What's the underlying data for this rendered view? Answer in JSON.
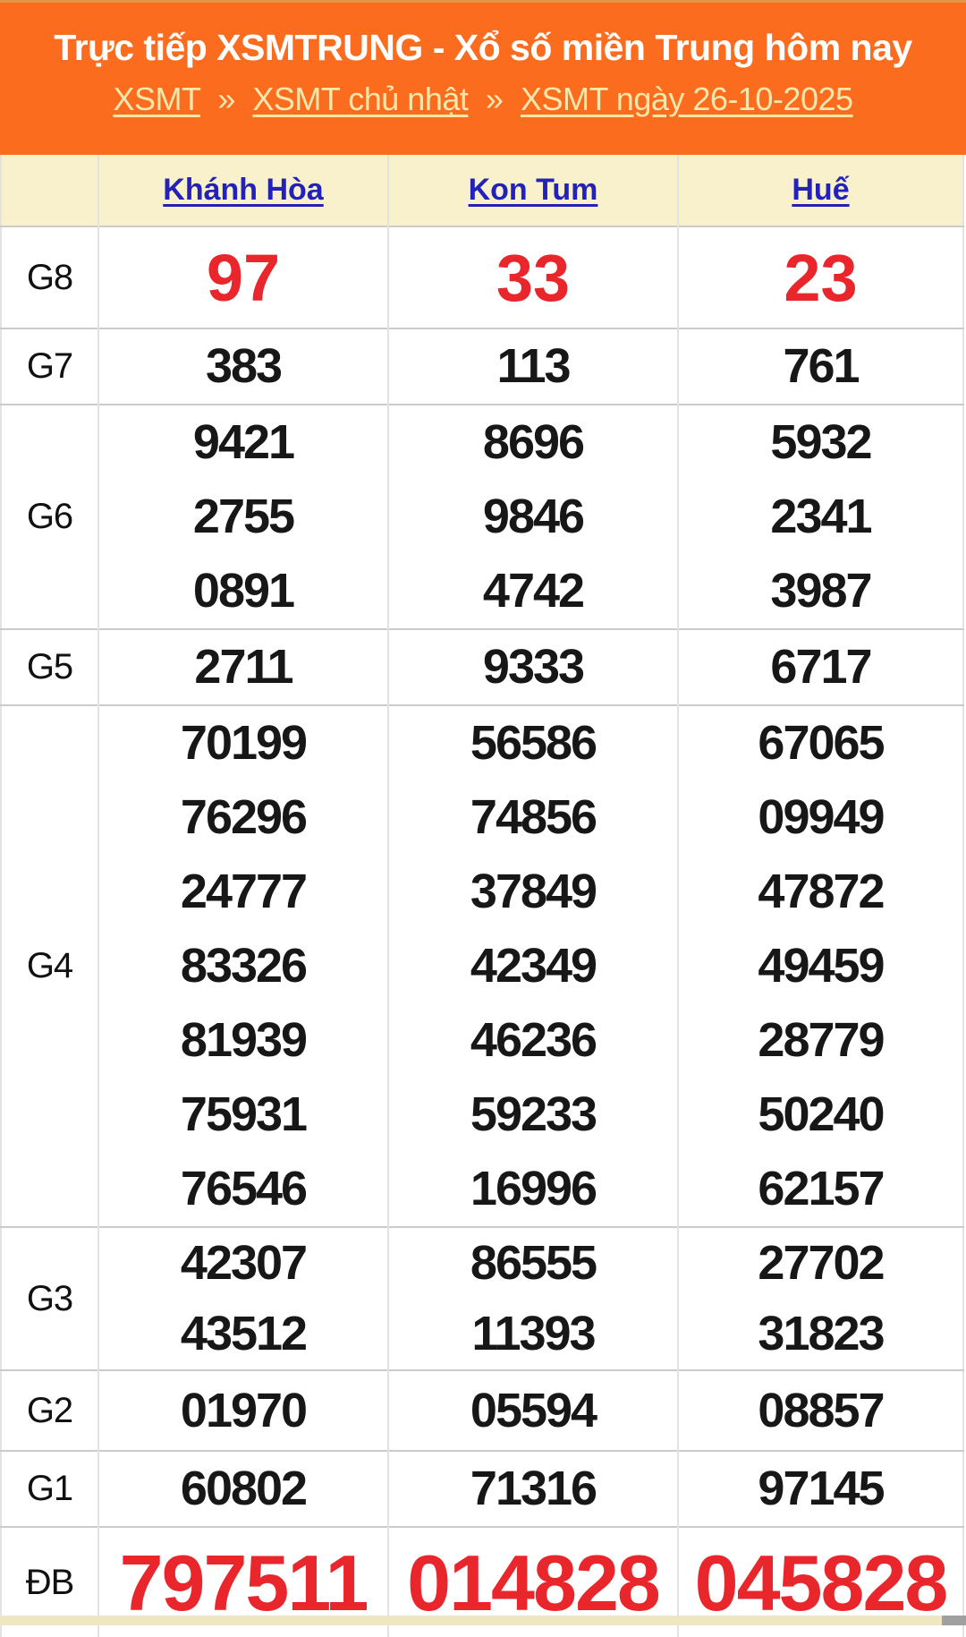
{
  "header": {
    "title": "Trực tiếp XSMTRUNG - Xổ số miền Trung hôm nay",
    "breadcrumb": {
      "separator": "»",
      "links": [
        "XSMT",
        "XSMT chủ nhật",
        "XSMT ngày 26-10-2025"
      ]
    }
  },
  "table": {
    "provinces": [
      "Khánh Hòa",
      "Kon Tum",
      "Huế"
    ],
    "rows": [
      {
        "id": "G8",
        "label": "G8",
        "cells": [
          [
            "97"
          ],
          [
            "33"
          ],
          [
            "23"
          ]
        ]
      },
      {
        "id": "G7",
        "label": "G7",
        "cells": [
          [
            "383"
          ],
          [
            "113"
          ],
          [
            "761"
          ]
        ]
      },
      {
        "id": "G6",
        "label": "G6",
        "cells": [
          [
            "9421",
            "2755",
            "0891"
          ],
          [
            "8696",
            "9846",
            "4742"
          ],
          [
            "5932",
            "2341",
            "3987"
          ]
        ]
      },
      {
        "id": "G5",
        "label": "G5",
        "cells": [
          [
            "2711"
          ],
          [
            "9333"
          ],
          [
            "6717"
          ]
        ]
      },
      {
        "id": "G4",
        "label": "G4",
        "cells": [
          [
            "70199",
            "76296",
            "24777",
            "83326",
            "81939",
            "75931",
            "76546"
          ],
          [
            "56586",
            "74856",
            "37849",
            "42349",
            "46236",
            "59233",
            "16996"
          ],
          [
            "67065",
            "09949",
            "47872",
            "49459",
            "28779",
            "50240",
            "62157"
          ]
        ]
      },
      {
        "id": "G3",
        "label": "G3",
        "cells": [
          [
            "42307",
            "43512"
          ],
          [
            "86555",
            "11393"
          ],
          [
            "27702",
            "31823"
          ]
        ]
      },
      {
        "id": "G2",
        "label": "G2",
        "cells": [
          [
            "01970"
          ],
          [
            "05594"
          ],
          [
            "08857"
          ]
        ]
      },
      {
        "id": "G1",
        "label": "G1",
        "cells": [
          [
            "60802"
          ],
          [
            "71316"
          ],
          [
            "97145"
          ]
        ]
      },
      {
        "id": "DB",
        "label": "ĐB",
        "cells": [
          [
            "797511"
          ],
          [
            "014828"
          ],
          [
            "045828"
          ]
        ]
      }
    ]
  },
  "colors": {
    "header_bg": "#fb6c1e",
    "header_topstrip": "#dca04e",
    "title_color": "#ffffff",
    "breadcrumb_color": "#f6e8ad",
    "thead_bg": "#f9f1cb",
    "link_blue": "#2222bb",
    "num_red": "#e9262c",
    "num_black": "#171717",
    "border_v": "#e3e3e3",
    "border_h": "#cbcbcb",
    "bottom_strip": "#efe6c4",
    "corner_gray": "#a0a0a0"
  }
}
